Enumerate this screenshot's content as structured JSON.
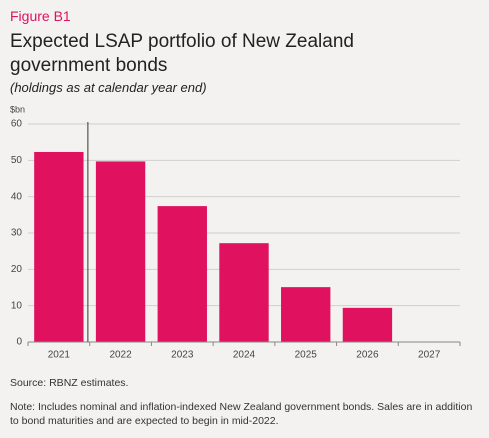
{
  "chart_data": {
    "type": "bar",
    "figure_label": "Figure B1",
    "title": "Expected LSAP portfolio of New Zealand government bonds",
    "subtitle": "(holdings as at calendar year end)",
    "y_label": "$bn",
    "categories": [
      "2021",
      "2022",
      "2023",
      "2024",
      "2025",
      "2026",
      "2027"
    ],
    "values": [
      52.3,
      49.7,
      37.4,
      27.2,
      15.1,
      9.4,
      0
    ],
    "color": "#e0115f",
    "ylim": [
      0,
      60
    ],
    "yticks": [
      0,
      10,
      20,
      30,
      40,
      50,
      60
    ],
    "grid": true,
    "source": "Source: RBNZ estimates.",
    "note": "Note: Includes nominal and inflation-indexed New Zealand government bonds. Sales are in addition to bond maturities and are expected to begin in mid-2022."
  }
}
